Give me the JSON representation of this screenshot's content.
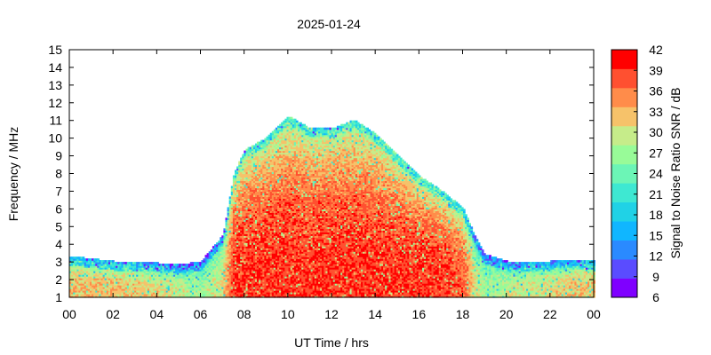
{
  "chart_data": {
    "type": "heatmap",
    "title": "2025-01-24",
    "xlabel": "UT Time / hrs",
    "ylabel": "Frequency / MHz",
    "xlim": [
      0,
      24
    ],
    "ylim": [
      1,
      15
    ],
    "xticks": [
      "00",
      "02",
      "04",
      "06",
      "08",
      "10",
      "12",
      "14",
      "16",
      "18",
      "20",
      "22",
      "00"
    ],
    "yticks": [
      "1",
      "2",
      "3",
      "4",
      "5",
      "6",
      "7",
      "8",
      "9",
      "10",
      "11",
      "12",
      "13",
      "14",
      "15"
    ],
    "colorbar": {
      "label": "Signal to Noise Ratio SNR / dB",
      "range": [
        6,
        42
      ],
      "ticks": [
        "6",
        "9",
        "12",
        "15",
        "18",
        "21",
        "24",
        "27",
        "30",
        "33",
        "36",
        "39",
        "42"
      ],
      "colors": [
        "#7f00ff",
        "#5a4cff",
        "#2a8aff",
        "#10b6ff",
        "#20d2e6",
        "#3ee8d2",
        "#6cf5b6",
        "#98fb98",
        "#c6ec8a",
        "#f6c26a",
        "#ff8c4a",
        "#ff5030",
        "#ff0000"
      ]
    },
    "envelope": {
      "hours": [
        0,
        2,
        4,
        5,
        6,
        7,
        7.5,
        8,
        9,
        10,
        11,
        12,
        13,
        14,
        15,
        16,
        17,
        18,
        18.5,
        19,
        20,
        22,
        24
      ],
      "top_mhz": [
        3.3,
        3.0,
        2.9,
        2.8,
        3.0,
        4.5,
        8.0,
        9.3,
        10.0,
        11.2,
        10.5,
        10.5,
        11.0,
        10.2,
        9.0,
        7.8,
        7.0,
        6.0,
        4.5,
        3.4,
        3.0,
        3.0,
        3.1
      ],
      "bottom_mhz": [
        1.0,
        1.0,
        1.0,
        1.0,
        1.0,
        1.0,
        1.0,
        1.0,
        1.0,
        1.0,
        1.0,
        1.0,
        1.0,
        1.0,
        1.0,
        1.0,
        1.0,
        1.0,
        1.0,
        1.0,
        1.0,
        1.0,
        1.0
      ],
      "peak_snr_db": [
        36,
        36,
        34,
        32,
        30,
        34,
        42,
        42,
        42,
        42,
        42,
        42,
        42,
        42,
        42,
        42,
        42,
        40,
        34,
        30,
        32,
        34,
        36
      ]
    }
  }
}
